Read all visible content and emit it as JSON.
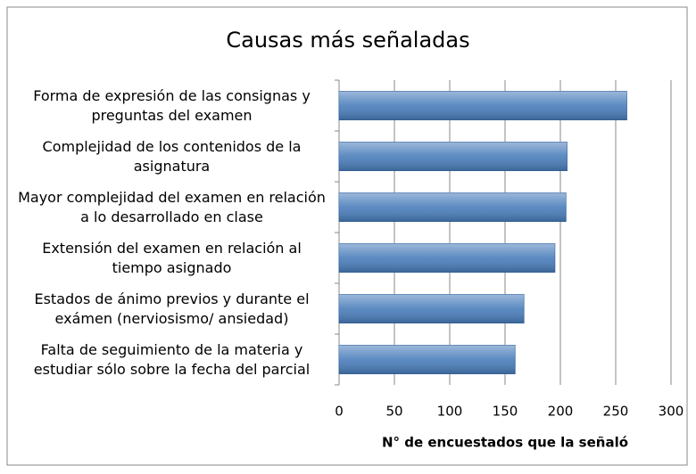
{
  "chart_data": {
    "type": "bar",
    "orientation": "horizontal",
    "title": "Causas más señaladas",
    "x_label": "N° de encuestados que la señaló",
    "categories": [
      "Forma de expresión de las consignas y preguntas del examen",
      "Complejidad de los contenidos de la asignatura",
      "Mayor complejidad del examen en relación a lo desarrollado en clase",
      "Extensión del examen en relación al tiempo asignado",
      "Estados de ánimo previos y durante el exámen (nerviosismo/ ansiedad)",
      "Falta de seguimiento de la materia y estudiar sólo sobre la fecha del parcial"
    ],
    "values": [
      260,
      206,
      205,
      195,
      167,
      159
    ],
    "color": "#4a7ebb",
    "xlim": [
      0,
      300
    ],
    "xticks": [
      0,
      50,
      100,
      150,
      200,
      250,
      300
    ],
    "grid": true
  }
}
